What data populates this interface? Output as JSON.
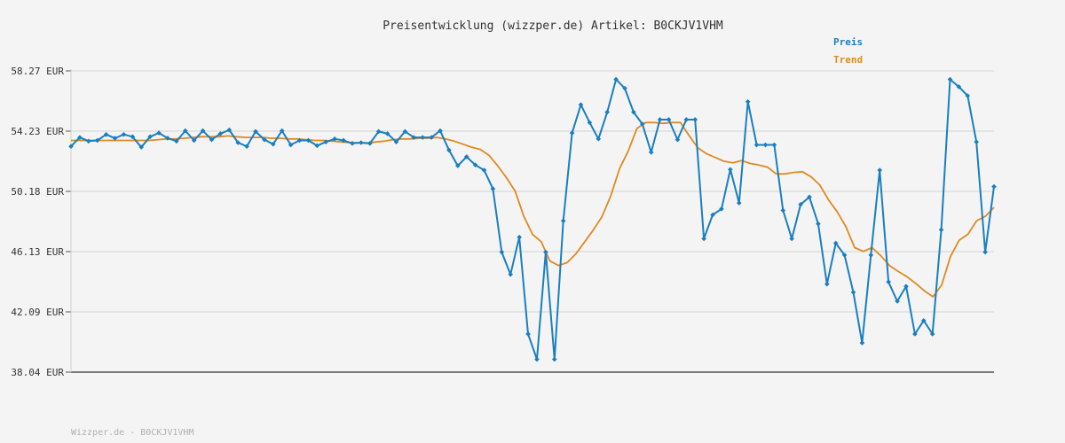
{
  "chart_data": {
    "type": "line",
    "title": "Preisentwicklung (wizzper.de) Artikel: B0CKJV1VHM",
    "ylim": [
      38.04,
      58.27
    ],
    "y_ticks": [
      "58.27 EUR",
      "54.23 EUR",
      "50.18 EUR",
      "46.13 EUR",
      "42.09 EUR",
      "38.04 EUR"
    ],
    "grid": true,
    "legend_position": "top-right",
    "series": [
      {
        "name": "Preis",
        "color": "#1a7fbf",
        "markers": true,
        "values": [
          53.2,
          53.8,
          53.55,
          53.6,
          54.0,
          53.75,
          54.0,
          53.85,
          53.15,
          53.85,
          54.1,
          53.75,
          53.55,
          54.25,
          53.6,
          54.25,
          53.65,
          54.05,
          54.3,
          53.45,
          53.2,
          54.2,
          53.65,
          53.35,
          54.25,
          53.3,
          53.6,
          53.6,
          53.25,
          53.5,
          53.7,
          53.6,
          53.4,
          53.45,
          53.4,
          54.2,
          54.05,
          53.5,
          54.2,
          53.8,
          53.8,
          53.8,
          54.25,
          52.95,
          51.9,
          52.5,
          51.95,
          51.6,
          50.35,
          46.1,
          44.6,
          47.1,
          40.6,
          38.9,
          46.1,
          38.9,
          48.2,
          54.1,
          56.0,
          54.8,
          53.7,
          55.5,
          57.7,
          57.1,
          55.5,
          54.7,
          52.8,
          55.0,
          55.0,
          53.65,
          55.0,
          55.0,
          47.0,
          48.6,
          49.0,
          51.65,
          49.4,
          56.2,
          53.3,
          53.3,
          53.3,
          48.9,
          47.0,
          49.3,
          49.8,
          48.0,
          43.95,
          46.7,
          45.9,
          43.4,
          40.0,
          45.9,
          51.6,
          44.1,
          42.8,
          43.8,
          40.6,
          41.5,
          40.6,
          47.6,
          57.7,
          57.2,
          56.6,
          53.5,
          46.1,
          50.5
        ],
        "x_extra_last": true
      },
      {
        "name": "Trend",
        "color": "#e08a20",
        "markers": false,
        "values": [
          53.6,
          53.6,
          53.6,
          53.6,
          53.6,
          53.6,
          53.6,
          53.6,
          53.6,
          53.6,
          53.65,
          53.7,
          53.7,
          53.75,
          53.8,
          53.85,
          53.85,
          53.85,
          53.9,
          53.85,
          53.8,
          53.8,
          53.8,
          53.75,
          53.75,
          53.7,
          53.7,
          53.65,
          53.6,
          53.6,
          53.55,
          53.5,
          53.45,
          53.45,
          53.4,
          53.5,
          53.55,
          53.65,
          53.7,
          53.7,
          53.75,
          53.75,
          53.8,
          53.7,
          53.55,
          53.35,
          53.15,
          53.0,
          52.6,
          51.9,
          51.1,
          50.2,
          48.5,
          47.3,
          46.8,
          45.5,
          45.2,
          45.4,
          46.0,
          46.8,
          47.6,
          48.5,
          49.9,
          51.7,
          52.9,
          54.4,
          54.8,
          54.8,
          54.75,
          54.8,
          54.8,
          53.9,
          53.1,
          52.7,
          52.45,
          52.2,
          52.1,
          52.25,
          52.05,
          51.95,
          51.8,
          51.35,
          51.35,
          51.45,
          51.5,
          51.15,
          50.6,
          49.6,
          48.8,
          47.8,
          46.4,
          46.15,
          46.4,
          45.85,
          45.2,
          44.8,
          44.45,
          44.0,
          43.5,
          43.1,
          43.9,
          45.8,
          46.9,
          47.3,
          48.2,
          48.5,
          49.1
        ]
      }
    ]
  },
  "legend": {
    "preis": "Preis",
    "trend": "Trend"
  },
  "footer": "Wizzper.de - B0CKJV1VHM"
}
